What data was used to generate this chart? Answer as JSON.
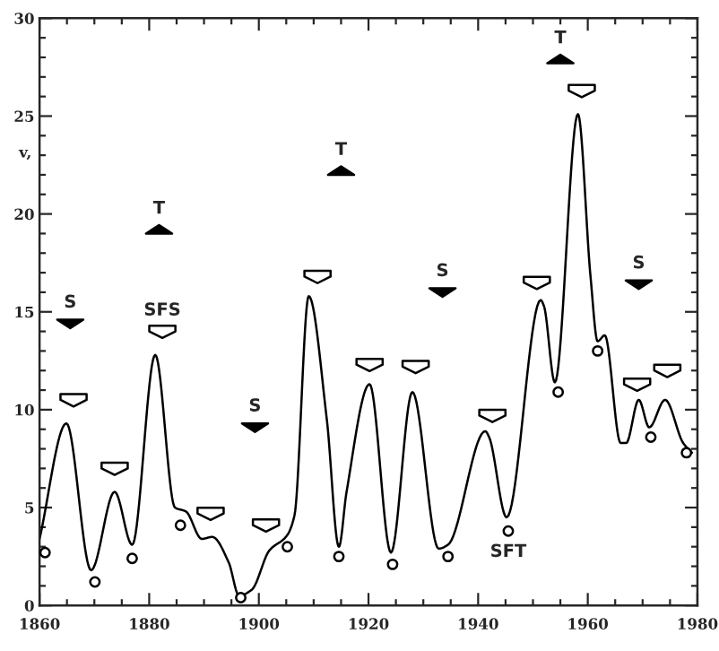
{
  "chart_data": {
    "type": "line",
    "ylabel": "v,",
    "xlim": [
      1860,
      1980
    ],
    "xticks": [
      1860,
      1880,
      1900,
      1920,
      1940,
      1960,
      1980
    ],
    "ylim": [
      0,
      30
    ],
    "yticks": [
      0,
      5,
      10,
      15,
      20,
      25,
      30
    ],
    "grid": false,
    "series": [
      {
        "color": "#000000",
        "marker": "none",
        "line_style": "solid",
        "x": [
          1860,
          1864.9,
          1869.4,
          1873.7,
          1876.9,
          1881.1,
          1884.7,
          1886.7,
          1889.6,
          1891.5,
          1894.5,
          1896.4,
          1898.7,
          1901.9,
          1905.2,
          1906.5,
          1909.1,
          1912.4,
          1914.6,
          1916.0,
          1920.2,
          1924.1,
          1928.0,
          1932.8,
          1934.5,
          1941.3,
          1942.0,
          1945.2,
          1951.4,
          1952.0,
          1954.0,
          1958.2,
          1960.5,
          1961.8,
          1963.1,
          1966.0,
          1967.0,
          1969.3,
          1971.2,
          1974.1,
          1977.4,
          1979.0
        ],
        "values": [
          3.4,
          9.3,
          1.8,
          5.8,
          3.1,
          12.8,
          5.0,
          4.8,
          3.4,
          3.5,
          2.2,
          0.5,
          0.8,
          2.8,
          3.6,
          4.6,
          15.8,
          9.5,
          3.0,
          5.8,
          11.3,
          2.7,
          10.9,
          2.9,
          3.1,
          8.9,
          8.6,
          4.5,
          15.6,
          15.3,
          11.4,
          25.1,
          16.8,
          13.5,
          13.8,
          8.3,
          8.3,
          10.5,
          9.1,
          10.5,
          8.3,
          7.8
        ]
      },
      {
        "type": "scatter",
        "color": "#ffffff",
        "marker": "circle",
        "x": [
          1861.0,
          1870.1,
          1876.9,
          1885.7,
          1896.7,
          1905.2,
          1914.6,
          1924.4,
          1934.5,
          1945.5,
          1954.6,
          1961.8,
          1971.5,
          1978.0
        ],
        "values": [
          2.7,
          1.2,
          2.4,
          4.1,
          0.4,
          3.0,
          2.5,
          2.1,
          2.5,
          3.8,
          10.9,
          13.0,
          8.6,
          7.8
        ]
      },
      {
        "type": "scatter",
        "color": "#ffffff",
        "marker": "triangle",
        "x": [
          1866.2,
          1873.7,
          1882.4,
          1891.2,
          1901.3,
          1910.7,
          1920.2,
          1928.6,
          1942.6,
          1950.7,
          1958.9,
          1969.0,
          1974.5
        ],
        "values": [
          10.5,
          7.0,
          14.0,
          4.7,
          4.1,
          16.8,
          12.3,
          12.2,
          9.7,
          16.5,
          26.3,
          11.3,
          12.0
        ]
      },
      {
        "type": "scatter",
        "color": "#000000",
        "marker": "triangle",
        "x": [
          1865.6,
          1899.3,
          1933.5,
          1969.3
        ],
        "values": [
          14.4,
          9.1,
          16.0,
          16.4
        ]
      },
      {
        "type": "scatter",
        "color": "#000000",
        "marker": "triangle",
        "x": [
          1881.8,
          1915.0,
          1955.0
        ],
        "values": [
          19.2,
          22.2,
          27.9
        ]
      }
    ],
    "annotations": [
      {
        "text": "S",
        "x": 1865.6,
        "y": 14.4
      },
      {
        "text": "S",
        "x": 1899.3,
        "y": 9.1
      },
      {
        "text": "S",
        "x": 1933.5,
        "y": 16.0
      },
      {
        "text": "S",
        "x": 1969.3,
        "y": 16.4
      },
      {
        "text": "T",
        "x": 1881.8,
        "y": 19.2
      },
      {
        "text": "T",
        "x": 1915.0,
        "y": 22.2
      },
      {
        "text": "T",
        "x": 1955.0,
        "y": 27.9
      },
      {
        "text": "SFS",
        "x": 1882.4,
        "y": 14.0
      },
      {
        "text": "SFT",
        "x": 1945.5,
        "y": 3.8
      }
    ]
  }
}
